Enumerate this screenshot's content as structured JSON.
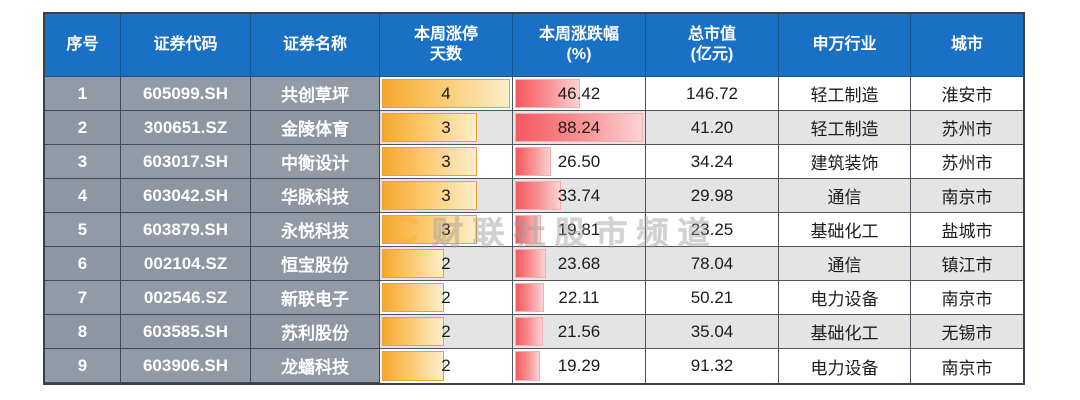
{
  "watermark": {
    "logo": "C",
    "text": "财联社股市频道"
  },
  "colors": {
    "header_bg": "#1a70c4",
    "left_cell_bg": "#929aa5",
    "row_alt_bg": "#e4e4e4",
    "days_bar": "#f6a72e",
    "pct_bar": "#f4595e",
    "border_dark": "#39424c"
  },
  "chart_data": {
    "type": "table",
    "title": "",
    "columns": [
      {
        "key": "seq",
        "label": "序号"
      },
      {
        "key": "code",
        "label": "证券代码"
      },
      {
        "key": "name",
        "label": "证券名称"
      },
      {
        "key": "days",
        "label": "本周涨停\n天数"
      },
      {
        "key": "pct",
        "label": "本周涨跌幅\n(%)"
      },
      {
        "key": "mcap",
        "label": "总市值\n(亿元)"
      },
      {
        "key": "industry",
        "label": "申万行业"
      },
      {
        "key": "city",
        "label": "城市"
      }
    ],
    "days_axis_max": 4,
    "pct_axis_max": 88.24,
    "rows": [
      {
        "seq": "1",
        "code": "605099.SH",
        "name": "共创草坪",
        "days": 4,
        "pct": 46.42,
        "pct_text": "46.42",
        "mcap": "146.72",
        "industry": "轻工制造",
        "city": "淮安市"
      },
      {
        "seq": "2",
        "code": "300651.SZ",
        "name": "金陵体育",
        "days": 3,
        "pct": 88.24,
        "pct_text": "88.24",
        "mcap": "41.20",
        "industry": "轻工制造",
        "city": "苏州市"
      },
      {
        "seq": "3",
        "code": "603017.SH",
        "name": "中衡设计",
        "days": 3,
        "pct": 26.5,
        "pct_text": "26.50",
        "mcap": "34.24",
        "industry": "建筑装饰",
        "city": "苏州市"
      },
      {
        "seq": "4",
        "code": "603042.SH",
        "name": "华脉科技",
        "days": 3,
        "pct": 33.74,
        "pct_text": "33.74",
        "mcap": "29.98",
        "industry": "通信",
        "city": "南京市"
      },
      {
        "seq": "5",
        "code": "603879.SH",
        "name": "永悦科技",
        "days": 3,
        "pct": 19.81,
        "pct_text": "19.81",
        "mcap": "23.25",
        "industry": "基础化工",
        "city": "盐城市"
      },
      {
        "seq": "6",
        "code": "002104.SZ",
        "name": "恒宝股份",
        "days": 2,
        "pct": 23.68,
        "pct_text": "23.68",
        "mcap": "78.04",
        "industry": "通信",
        "city": "镇江市"
      },
      {
        "seq": "7",
        "code": "002546.SZ",
        "name": "新联电子",
        "days": 2,
        "pct": 22.11,
        "pct_text": "22.11",
        "mcap": "50.21",
        "industry": "电力设备",
        "city": "南京市"
      },
      {
        "seq": "8",
        "code": "603585.SH",
        "name": "苏利股份",
        "days": 2,
        "pct": 21.56,
        "pct_text": "21.56",
        "mcap": "35.04",
        "industry": "基础化工",
        "city": "无锡市"
      },
      {
        "seq": "9",
        "code": "603906.SH",
        "name": "龙蟠科技",
        "days": 2,
        "pct": 19.29,
        "pct_text": "19.29",
        "mcap": "91.32",
        "industry": "电力设备",
        "city": "南京市"
      }
    ]
  }
}
